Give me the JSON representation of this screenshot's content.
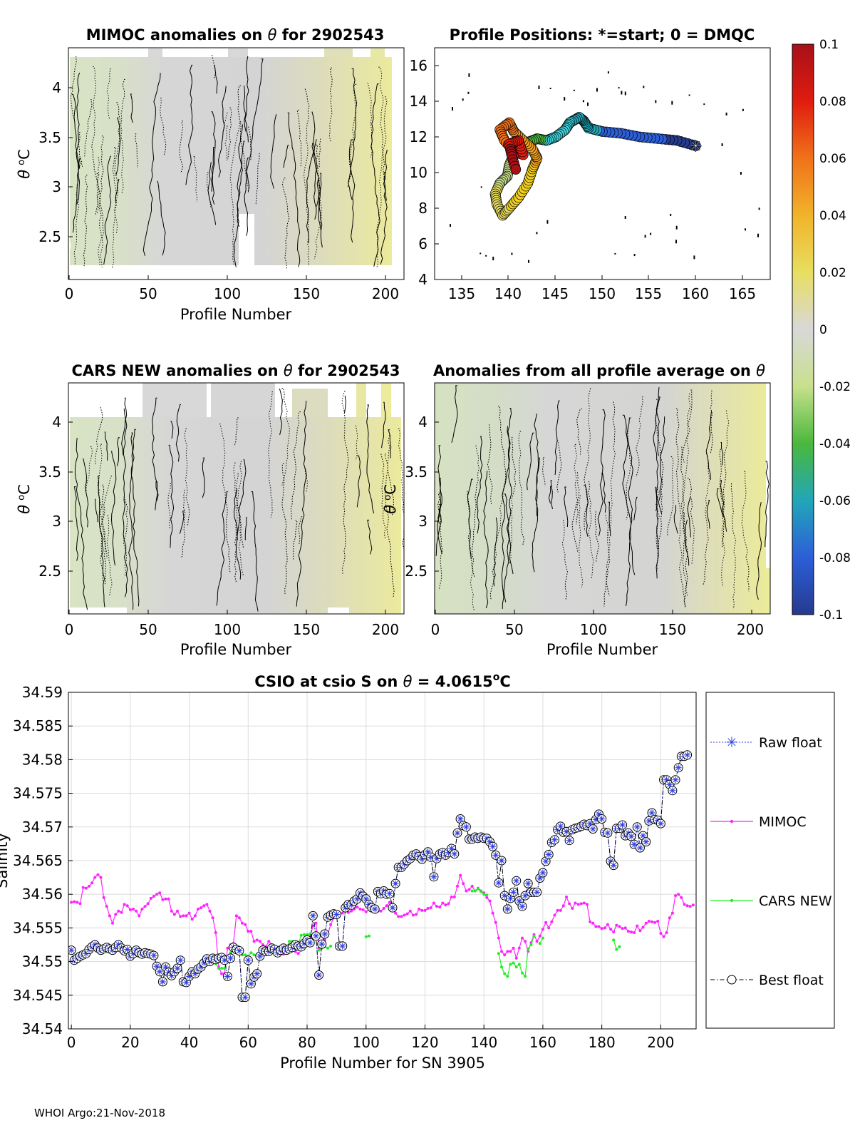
{
  "footer": "WHOI Argo:21-Nov-2018",
  "colors": {
    "raw": "#2f3fe0",
    "mimoc": "#ff22ff",
    "cars": "#22ee22",
    "best": "#000000",
    "grid": "#dcdcdc"
  },
  "panels": {
    "mimoc": {
      "title_pre": "MIMOC anomalies on ",
      "theta": "θ",
      "title_post": "  for 2902543",
      "ylabel_theta": "θ",
      "ylabel_unit": "C",
      "ylabel_deg": "o",
      "xlabel": "Profile Number",
      "xticks": [
        "0",
        "50",
        "100",
        "150",
        "200"
      ],
      "yticks": [
        "2.5",
        "3",
        "3.5",
        "4"
      ]
    },
    "positions": {
      "title": "Profile Positions: *=start; 0 = DMQC",
      "xticks": [
        "135",
        "140",
        "145",
        "150",
        "155",
        "160",
        "165"
      ],
      "yticks": [
        "4",
        "6",
        "8",
        "10",
        "12",
        "14",
        "16"
      ]
    },
    "cars": {
      "title_pre": "CARS NEW anomalies on ",
      "theta": "θ",
      "title_post": " for 2902543",
      "ylabel_theta": "θ",
      "ylabel_unit": "C",
      "ylabel_deg": "o",
      "xlabel": "Profile Number",
      "xticks": [
        "0",
        "50",
        "100",
        "150",
        "200"
      ],
      "yticks": [
        "2.5",
        "3",
        "3.5",
        "4"
      ]
    },
    "allavg": {
      "title_pre": "Anomalies from all profile average on ",
      "theta": "θ",
      "ylabel_theta": "θ",
      "ylabel_unit": "C",
      "ylabel_deg": "o",
      "xlabel": "Profile Number",
      "xticks": [
        "0",
        "50",
        "100",
        "150",
        "200"
      ],
      "yticks": [
        "2.5",
        "3",
        "3.5",
        "4"
      ]
    },
    "colorbar": {
      "ticks": [
        "0.1",
        "0.08",
        "0.06",
        "0.04",
        "0.02",
        "0",
        "-0.02",
        "-0.04",
        "-0.06",
        "-0.08",
        "-0.1"
      ]
    }
  },
  "chart_data": [
    {
      "type": "heatmap",
      "title": "MIMOC anomalies on θ  for 2902543",
      "xlabel": "Profile Number",
      "ylabel": "θ °C",
      "xlim": [
        0,
        212
      ],
      "ylim": [
        2.1,
        4.35
      ],
      "color_range": [
        -0.1,
        0.1
      ]
    },
    {
      "type": "scatter",
      "title": "Profile Positions: *=start; 0 = DMQC",
      "xlim": [
        132,
        168
      ],
      "ylim": [
        4,
        17
      ],
      "start": [
        160,
        11.5
      ],
      "track": [
        [
          160,
          11.5
        ],
        [
          158,
          11.8
        ],
        [
          156,
          11.9
        ],
        [
          154,
          12.0
        ],
        [
          152,
          12.2
        ],
        [
          150,
          12.3
        ],
        [
          148.5,
          12.5
        ],
        [
          148,
          12.9
        ],
        [
          147.5,
          13.1
        ],
        [
          146.5,
          12.8
        ],
        [
          146,
          12.4
        ],
        [
          145,
          12.0
        ],
        [
          144,
          11.8
        ],
        [
          143,
          11.9
        ],
        [
          142,
          11.7
        ],
        [
          141,
          11.5
        ],
        [
          140.5,
          11.0
        ],
        [
          140,
          10.4
        ],
        [
          139.8,
          9.8
        ],
        [
          139,
          9.4
        ],
        [
          138.5,
          8.8
        ],
        [
          138.7,
          8.2
        ],
        [
          139.3,
          7.6
        ],
        [
          140,
          8.0
        ],
        [
          141,
          8.6
        ],
        [
          142,
          9.4
        ],
        [
          142.5,
          10.2
        ],
        [
          143,
          10.8
        ],
        [
          142.5,
          11.3
        ],
        [
          141.5,
          11.8
        ],
        [
          140.5,
          12.3
        ],
        [
          140,
          12.8
        ],
        [
          139,
          12.4
        ],
        [
          139.5,
          11.8
        ],
        [
          140.5,
          11.2
        ],
        [
          141.5,
          11.0
        ],
        [
          141,
          11.8
        ],
        [
          140,
          11.6
        ],
        [
          140.3,
          10.9
        ],
        [
          140.8,
          10.0
        ]
      ]
    },
    {
      "type": "heatmap",
      "title": "CARS NEW anomalies on θ for 2902543",
      "xlabel": "Profile Number",
      "ylabel": "θ °C",
      "xlim": [
        0,
        212
      ],
      "ylim": [
        2.05,
        4.45
      ],
      "color_range": [
        -0.1,
        0.1
      ]
    },
    {
      "type": "heatmap",
      "title": "Anomalies from all profile average on θ",
      "xlabel": "Profile Number",
      "ylabel": "θ °C",
      "xlim": [
        0,
        212
      ],
      "ylim": [
        2.05,
        4.45
      ],
      "color_range": [
        -0.1,
        0.1
      ]
    },
    {
      "type": "line",
      "title": "CSIO at csio S on θ = 4.0615°C",
      "title_pre": "CSIO at csio S on ",
      "title_theta": "θ",
      "title_mid": " = 4.0615",
      "title_deg": "o",
      "title_unit": "C",
      "xlabel": "Profile Number for SN 3905",
      "ylabel": "Salinity",
      "xlim": [
        -1,
        212
      ],
      "ylim": [
        34.54,
        34.59
      ],
      "xticks": [
        "0",
        "20",
        "40",
        "60",
        "80",
        "100",
        "120",
        "140",
        "160",
        "180",
        "200"
      ],
      "yticks": [
        "34.54",
        "34.545",
        "34.55",
        "34.555",
        "34.56",
        "34.565",
        "34.57",
        "34.575",
        "34.58",
        "34.585",
        "34.59"
      ],
      "legend": [
        "Raw float",
        "MIMOC",
        "CARS NEW",
        "Best float"
      ],
      "legend_position": "outside-right",
      "series": [
        {
          "name": "Best float",
          "x_start": 0,
          "values": [
            34.5517,
            34.5502,
            34.5505,
            34.5508,
            34.551,
            34.5512,
            34.5518,
            34.5522,
            34.5525,
            34.552,
            34.5517,
            34.5519,
            34.5521,
            34.5519,
            34.5517,
            34.5521,
            34.5525,
            34.552,
            34.5516,
            34.5518,
            34.5508,
            34.5512,
            34.5517,
            34.5513,
            34.5511,
            34.5513,
            34.5512,
            34.5511,
            34.5509,
            34.5493,
            34.5485,
            34.547,
            34.5492,
            34.5484,
            34.5479,
            34.5485,
            34.549,
            34.5502,
            34.547,
            34.5469,
            34.5478,
            34.5485,
            34.5482,
            34.5489,
            34.5492,
            34.5498,
            34.5504,
            34.55,
            34.5505,
            34.5503,
            34.5505,
            34.5506,
            34.5502,
            34.5478,
            34.5505,
            34.5521,
            34.5518,
            34.5516,
            34.5447,
            34.5447,
            34.5502,
            34.5467,
            34.5477,
            34.5482,
            34.5508,
            34.5517,
            34.5515,
            34.5515,
            34.552,
            34.5518,
            34.5513,
            34.5517,
            34.552,
            34.5517,
            34.5519,
            34.5521,
            34.5525,
            34.5523,
            34.5522,
            34.5527,
            34.5532,
            34.5528,
            34.5568,
            34.5538,
            34.548,
            34.5526,
            34.5541,
            34.5566,
            34.5569,
            34.5571,
            34.557,
            34.5523,
            34.5523,
            34.558,
            34.5585,
            34.5584,
            34.559,
            34.5593,
            34.5602,
            34.5597,
            34.5593,
            34.5585,
            34.558,
            34.5578,
            34.5604,
            34.5601,
            34.5605,
            34.56,
            34.5601,
            34.558,
            34.5616,
            34.564,
            34.564,
            34.5645,
            34.565,
            34.5653,
            34.5658,
            34.566,
            34.5656,
            34.5652,
            34.5659,
            34.5663,
            34.5655,
            34.5626,
            34.5653,
            34.566,
            34.5662,
            34.5658,
            34.5662,
            34.5668,
            34.566,
            34.5691,
            34.5712,
            34.5702,
            34.57,
            34.5682,
            34.5682,
            34.5685,
            34.5683,
            34.5685,
            34.5683,
            34.5683,
            34.5678,
            34.5671,
            34.5658,
            34.5617,
            34.565,
            34.5598,
            34.5578,
            34.5594,
            34.5603,
            34.562,
            34.559,
            34.5582,
            34.5598,
            34.5616,
            34.5603,
            34.5603,
            34.5603,
            34.5624,
            34.5632,
            34.5649,
            34.5659,
            34.5677,
            34.5681,
            34.5696,
            34.5701,
            34.5692,
            34.5693,
            34.568,
            34.5696,
            34.5698,
            34.5699,
            34.5701,
            34.5704,
            34.5702,
            34.5705,
            34.5697,
            34.5711,
            34.5719,
            34.5712,
            34.5692,
            34.5691,
            34.5649,
            34.5643,
            34.5698,
            34.5698,
            34.5703,
            34.5687,
            34.5691,
            34.5686,
            34.5674,
            34.57,
            34.5669,
            34.5687,
            34.5678,
            34.5709,
            34.5721,
            34.5711,
            34.571,
            34.5705,
            34.577,
            34.577,
            34.5763,
            34.5754,
            34.577,
            34.5788,
            34.5805,
            34.5805,
            34.5807
          ]
        },
        {
          "name": "MIMOC",
          "x_start": 0,
          "values": [
            34.5588,
            34.5589,
            34.5588,
            34.5586,
            34.561,
            34.5609,
            34.5612,
            34.5617,
            34.5625,
            34.5629,
            34.5625,
            34.5595,
            34.5582,
            34.5568,
            34.5557,
            34.557,
            34.5575,
            34.5573,
            34.5585,
            34.5583,
            34.5577,
            34.5578,
            34.5575,
            34.5568,
            34.5578,
            34.5582,
            34.5586,
            34.5594,
            34.5597,
            34.56,
            34.5602,
            34.5592,
            34.5593,
            34.5593,
            34.5575,
            34.557,
            34.5575,
            34.5567,
            34.5568,
            34.5568,
            34.5572,
            34.5563,
            34.5568,
            34.5578,
            34.558,
            34.5583,
            34.5585,
            34.5575,
            34.5565,
            34.5543,
            34.5492,
            34.5482,
            34.5482,
            34.552,
            34.5525,
            34.5527,
            34.5568,
            34.5565,
            34.5557,
            34.5555,
            34.5545,
            34.5545,
            34.553,
            34.5532,
            34.553,
            34.5525,
            34.5522,
            34.553,
            34.5525,
            34.5522,
            34.552,
            34.5515,
            34.5511,
            34.552,
            34.5525,
            34.553,
            34.5515,
            34.5512,
            34.5517,
            34.5528,
            34.5532,
            34.5537,
            34.5553,
            34.5557,
            34.552,
            34.5526,
            34.5532,
            34.554,
            34.5555,
            34.5565,
            34.5568,
            34.557,
            34.5572,
            34.5577,
            34.5573,
            34.5575,
            34.5578,
            34.5581,
            34.5578,
            34.5577,
            34.5574,
            34.5578,
            34.5583,
            34.5574,
            34.5575,
            34.5575,
            34.5579,
            34.5583,
            34.5588,
            34.558,
            34.5572,
            34.5567,
            34.5567,
            34.5569,
            34.5571,
            34.5575,
            34.5569,
            34.557,
            34.5578,
            34.5576,
            34.5576,
            34.5579,
            34.558,
            34.5587,
            34.5582,
            34.5581,
            34.5587,
            34.5584,
            34.5586,
            34.5596,
            34.5596,
            34.5612,
            34.5628,
            34.5616,
            34.5605,
            34.5607,
            34.5612,
            34.5605,
            34.5609,
            34.5605,
            34.5602,
            34.5595,
            34.559,
            34.5572,
            34.5558,
            34.5535,
            34.5515,
            34.551,
            34.5515,
            34.5515,
            34.552,
            34.5505,
            34.552,
            34.5535,
            34.553,
            34.5515,
            34.5528,
            34.554,
            34.553,
            34.5538,
            34.5548,
            34.5558,
            34.555,
            34.5559,
            34.5569,
            34.5576,
            34.5576,
            34.5583,
            34.5596,
            34.5586,
            34.5579,
            34.5587,
            34.5585,
            34.5586,
            34.5587,
            34.5585,
            34.5559,
            34.5557,
            34.5552,
            34.5552,
            34.5549,
            34.555,
            34.5555,
            34.5548,
            34.5544,
            34.5554,
            34.5552,
            34.5549,
            34.555,
            34.5545,
            34.5544,
            34.5543,
            34.5553,
            34.5546,
            34.5551,
            34.5557,
            34.556,
            34.5559,
            34.5558,
            34.556,
            34.5542,
            34.5537,
            34.5543,
            34.5565,
            34.5572,
            34.5598,
            34.56,
            34.5595,
            34.5585,
            34.5583,
            34.5582,
            34.5584
          ]
        },
        {
          "name": "CARS NEW",
          "segments": [
            {
              "x_start": 45,
              "values": [
                34.55,
                34.5502,
                34.5504,
                34.5505,
                34.5497,
                34.549,
                34.549,
                34.549,
                34.5505,
                34.5513,
                34.5516,
                34.5521,
                34.5519,
                34.551,
                34.551,
                34.5508,
                34.5513,
                34.551,
                34.5508,
                34.5508,
                34.5511,
                34.5513,
                34.5512,
                34.5515,
                34.5515,
                34.5513,
                34.552,
                34.5517,
                34.552,
                34.553,
                34.553,
                34.5525,
                34.5526,
                34.5539,
                34.554,
                34.554,
                34.5541
              ]
            },
            {
              "x_start": 84,
              "values": [
                34.5517,
                34.552,
                34.5522
              ]
            },
            {
              "x_start": 86,
              "values": [
                34.5522,
                34.552,
                34.5523
              ]
            },
            {
              "x_start": 100,
              "values": [
                34.5537,
                34.5538
              ]
            },
            {
              "x_start": 136,
              "values": [
                34.5605,
                34.5605,
                34.5608,
                34.5604,
                34.56,
                34.5599
              ]
            },
            {
              "x_start": 145,
              "values": [
                34.5512,
                34.5492,
                34.5482,
                34.5478,
                34.5496,
                34.5498,
                34.5492,
                34.5496,
                34.5483,
                34.5478,
                34.5519,
                34.5525,
                34.5538
              ]
            },
            {
              "x_start": 159,
              "values": [
                34.5527,
                34.5535
              ]
            },
            {
              "x_start": 184,
              "values": [
                34.5532,
                34.5518,
                34.5522
              ]
            }
          ]
        }
      ]
    }
  ]
}
